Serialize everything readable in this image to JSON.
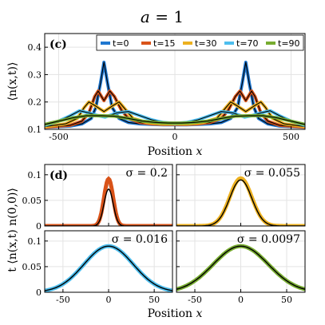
{
  "figure": {
    "title": "a = 1",
    "title_var": "a",
    "title_val": "= 1"
  },
  "chart_data": [
    {
      "panel": "(c)",
      "type": "line",
      "xlabel": "Position x",
      "ylabel": "⟨n(x,t)⟩",
      "xlim": [
        -560,
        560
      ],
      "ylim": [
        0.1,
        0.45
      ],
      "xticks": [
        -500,
        0,
        500
      ],
      "yticks": [
        0.1,
        0.2,
        0.3,
        0.4
      ],
      "xtick_labels": [
        "-500",
        "0",
        "500"
      ],
      "ytick_labels": [
        "0.1",
        "0.2",
        "0.3",
        "0.4"
      ],
      "grid": true,
      "legend": "top-right",
      "series": [
        {
          "name": "t=0",
          "color": "#1f77d0",
          "x": [
            -560,
            -450,
            -400,
            -360,
            -340,
            -320,
            -305,
            -290,
            -270,
            -240,
            -200,
            -150,
            -100,
            -50,
            0,
            50,
            100,
            150,
            200,
            240,
            270,
            290,
            305,
            320,
            340,
            360,
            400,
            450,
            560
          ],
          "y": [
            0.108,
            0.112,
            0.12,
            0.14,
            0.18,
            0.27,
            0.345,
            0.27,
            0.18,
            0.14,
            0.125,
            0.12,
            0.118,
            0.117,
            0.117,
            0.117,
            0.118,
            0.12,
            0.125,
            0.14,
            0.18,
            0.27,
            0.345,
            0.27,
            0.18,
            0.14,
            0.12,
            0.112,
            0.108
          ]
        },
        {
          "name": "t=15",
          "color": "#d95319",
          "x": [
            -560,
            -450,
            -400,
            -370,
            -345,
            -330,
            -305,
            -280,
            -260,
            -230,
            -200,
            -150,
            -100,
            -50,
            0,
            50,
            100,
            150,
            200,
            230,
            260,
            280,
            305,
            330,
            345,
            370,
            400,
            450,
            560
          ],
          "y": [
            0.108,
            0.115,
            0.13,
            0.16,
            0.22,
            0.24,
            0.205,
            0.24,
            0.22,
            0.17,
            0.14,
            0.125,
            0.12,
            0.118,
            0.118,
            0.118,
            0.12,
            0.125,
            0.14,
            0.17,
            0.22,
            0.24,
            0.205,
            0.24,
            0.22,
            0.16,
            0.13,
            0.115,
            0.108
          ]
        },
        {
          "name": "t=30",
          "color": "#edb120",
          "x": [
            -560,
            -470,
            -420,
            -390,
            -370,
            -340,
            -305,
            -270,
            -240,
            -220,
            -180,
            -120,
            -60,
            0,
            60,
            120,
            180,
            220,
            240,
            270,
            305,
            340,
            370,
            390,
            420,
            470,
            560
          ],
          "y": [
            0.11,
            0.12,
            0.14,
            0.18,
            0.2,
            0.185,
            0.165,
            0.185,
            0.2,
            0.18,
            0.14,
            0.125,
            0.12,
            0.12,
            0.12,
            0.125,
            0.14,
            0.18,
            0.2,
            0.185,
            0.165,
            0.185,
            0.2,
            0.18,
            0.14,
            0.12,
            0.11
          ]
        },
        {
          "name": "t=70",
          "color": "#4dbeee",
          "x": [
            -560,
            -500,
            -450,
            -410,
            -370,
            -330,
            -300,
            -250,
            -200,
            -150,
            -100,
            -50,
            0,
            50,
            100,
            150,
            200,
            250,
            300,
            330,
            370,
            410,
            450,
            500,
            560
          ],
          "y": [
            0.115,
            0.13,
            0.15,
            0.168,
            0.16,
            0.15,
            0.145,
            0.16,
            0.165,
            0.15,
            0.135,
            0.125,
            0.122,
            0.125,
            0.135,
            0.15,
            0.165,
            0.16,
            0.145,
            0.15,
            0.16,
            0.168,
            0.15,
            0.13,
            0.115
          ]
        },
        {
          "name": "t=90",
          "color": "#77ac30",
          "x": [
            -560,
            -500,
            -440,
            -380,
            -320,
            -260,
            -200,
            -140,
            -80,
            -30,
            0,
            30,
            80,
            140,
            200,
            260,
            320,
            380,
            440,
            500,
            560
          ],
          "y": [
            0.118,
            0.13,
            0.142,
            0.15,
            0.15,
            0.148,
            0.14,
            0.13,
            0.125,
            0.123,
            0.123,
            0.123,
            0.125,
            0.13,
            0.14,
            0.148,
            0.15,
            0.15,
            0.142,
            0.13,
            0.118
          ]
        }
      ]
    },
    {
      "panel": "(d)",
      "type": "line",
      "ylabel": "t ⟨n(x,t) n(0,0)⟩",
      "xlabel": "Position x",
      "subplots": [
        {
          "sigma": "σ = 0.2",
          "color": "#d95319",
          "xlim": [
            -70,
            70
          ],
          "ylim": [
            0,
            0.12
          ],
          "xticks": [
            -50,
            0,
            50
          ],
          "yticks": [
            0,
            0.05,
            0.1
          ],
          "ytick_labels": [
            "0",
            "0.05",
            "0.1"
          ],
          "data_width": 5,
          "data_amp": 0.092,
          "fit_width": 5,
          "fit_amp": 0.072
        },
        {
          "sigma": "σ = 0.055",
          "color": "#edb120",
          "xlim": [
            -70,
            70
          ],
          "ylim": [
            0,
            0.12
          ],
          "xticks": [
            -50,
            0,
            50
          ],
          "yticks": [
            0,
            0.05,
            0.1
          ],
          "data_width": 12,
          "data_amp": 0.093,
          "fit_width": 12,
          "fit_amp": 0.09
        },
        {
          "sigma": "σ = 0.016",
          "color": "#4dbeee",
          "xlim": [
            -70,
            70
          ],
          "ylim": [
            0,
            0.12
          ],
          "xticks": [
            -50,
            0,
            50
          ],
          "yticks": [
            0,
            0.05,
            0.1
          ],
          "xtick_labels": [
            "-50",
            "0",
            "50"
          ],
          "ytick_labels": [
            "0",
            "0.05",
            "0.1"
          ],
          "data_width": 27,
          "data_amp": 0.09,
          "fit_width": 27,
          "fit_amp": 0.09
        },
        {
          "sigma": "σ = 0.0097",
          "color": "#77ac30",
          "xlim": [
            -70,
            70
          ],
          "ylim": [
            0,
            0.12
          ],
          "xticks": [
            -50,
            0,
            50
          ],
          "yticks": [
            0,
            0.05,
            0.1
          ],
          "xtick_labels": [
            "-50",
            "0",
            "50"
          ],
          "data_width": 30,
          "data_amp": 0.09,
          "fit_width": 30,
          "fit_amp": 0.09
        }
      ]
    }
  ]
}
